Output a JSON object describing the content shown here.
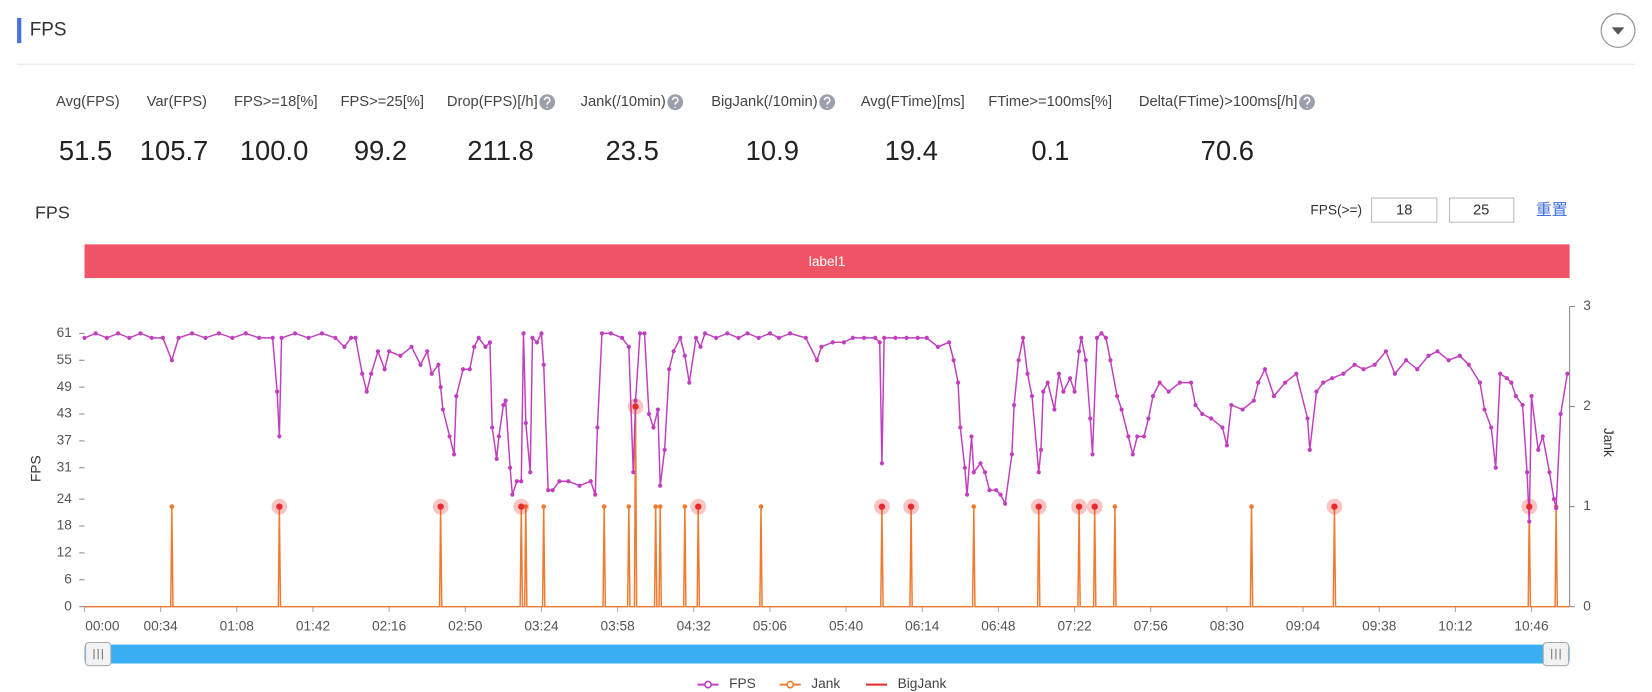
{
  "header": {
    "title": "FPS"
  },
  "stats": [
    {
      "label": "Avg(FPS)",
      "value": "51.5"
    },
    {
      "label": "Var(FPS)",
      "value": "105.7"
    },
    {
      "label": "FPS>=18[%]",
      "value": "100.0"
    },
    {
      "label": "FPS>=25[%]",
      "value": "99.2"
    },
    {
      "label": "Drop(FPS)[/h]",
      "value": "211.8",
      "help": true
    },
    {
      "label": "Jank(/10min)",
      "value": "23.5",
      "help": true
    },
    {
      "label": "BigJank(/10min)",
      "value": "10.9",
      "help": true
    },
    {
      "label": "Avg(FTime)[ms]",
      "value": "19.4"
    },
    {
      "label": "FTime>=100ms[%]",
      "value": "0.1"
    },
    {
      "label": "Delta(FTime)>100ms[/h]",
      "value": "70.6",
      "help": true
    }
  ],
  "controls": {
    "threshold_label": "FPS(>=)",
    "inputs": [
      "18",
      "25"
    ],
    "reset": "重置"
  },
  "chart_data": {
    "type": "line",
    "title": "FPS",
    "band": {
      "label": "label1",
      "color": "#ef5466"
    },
    "ylabel": "FPS",
    "y2label": "Jank",
    "xlim": [
      0,
      663
    ],
    "xticks": [
      {
        "value": 0,
        "label": "00:00"
      },
      {
        "value": 34,
        "label": "00:34"
      },
      {
        "value": 68,
        "label": "01:08"
      },
      {
        "value": 102,
        "label": "01:42"
      },
      {
        "value": 136,
        "label": "02:16"
      },
      {
        "value": 170,
        "label": "02:50"
      },
      {
        "value": 204,
        "label": "03:24"
      },
      {
        "value": 238,
        "label": "03:58"
      },
      {
        "value": 272,
        "label": "04:32"
      },
      {
        "value": 306,
        "label": "05:06"
      },
      {
        "value": 340,
        "label": "05:40"
      },
      {
        "value": 374,
        "label": "06:14"
      },
      {
        "value": 408,
        "label": "06:48"
      },
      {
        "value": 442,
        "label": "07:22"
      },
      {
        "value": 476,
        "label": "07:56"
      },
      {
        "value": 510,
        "label": "08:30"
      },
      {
        "value": 544,
        "label": "09:04"
      },
      {
        "value": 578,
        "label": "09:38"
      },
      {
        "value": 612,
        "label": "10:12"
      },
      {
        "value": 646,
        "label": "10:46"
      }
    ],
    "ylim": [
      0,
      67
    ],
    "yticks": [
      0,
      6,
      12,
      18,
      24,
      31,
      37,
      43,
      49,
      55,
      61
    ],
    "y2lim": [
      0,
      3
    ],
    "y2ticks": [
      0,
      1,
      2,
      3
    ],
    "series": [
      {
        "name": "FPS",
        "color": "#c13fbf",
        "marker": "dot",
        "line": true,
        "x": [
          0,
          5,
          10,
          15,
          20,
          25,
          30,
          35,
          39,
          42,
          48,
          54,
          60,
          66,
          72,
          78,
          84,
          86,
          87,
          88,
          94,
          100,
          106,
          112,
          116,
          119,
          121,
          124,
          126,
          128,
          131,
          134,
          136,
          141,
          146,
          150,
          153,
          155,
          158,
          159,
          160,
          163,
          165,
          166,
          169,
          172,
          174,
          176,
          179,
          181,
          182,
          184,
          185,
          187,
          188,
          190,
          191,
          193,
          195,
          196,
          197,
          199,
          200,
          202,
          204,
          205,
          207,
          209,
          212,
          216,
          221,
          226,
          228,
          229,
          231,
          235,
          240,
          243,
          245,
          246,
          248,
          250,
          252,
          254,
          256,
          257,
          259,
          261,
          263,
          266,
          268,
          270,
          273,
          275,
          277,
          282,
          287,
          292,
          296,
          301,
          306,
          310,
          315,
          322,
          327,
          329,
          334,
          339,
          343,
          348,
          353,
          355,
          356,
          357,
          362,
          367,
          372,
          376,
          381,
          386,
          388,
          390,
          391,
          393,
          394,
          396,
          397,
          400,
          402,
          404,
          407,
          409,
          411,
          414,
          415,
          417,
          419,
          421,
          423,
          426,
          427,
          428,
          430,
          433,
          435,
          437,
          440,
          442,
          444,
          445,
          447,
          449,
          450,
          452,
          454,
          456,
          458,
          461,
          463,
          466,
          468,
          470,
          473,
          475,
          477,
          480,
          484,
          489,
          494,
          496,
          499,
          503,
          508,
          510,
          512,
          517,
          522,
          524,
          527,
          531,
          536,
          541,
          546,
          547,
          550,
          553,
          557,
          562,
          567,
          571,
          576,
          581,
          585,
          590,
          595,
          600,
          604,
          609,
          614,
          618,
          623,
          625,
          628,
          630,
          632,
          635,
          637,
          639,
          642,
          644,
          645,
          646,
          649,
          651,
          654,
          656,
          657,
          659,
          662
        ],
        "values": [
          60,
          61,
          60,
          61,
          60,
          61,
          60,
          60,
          55,
          60,
          61,
          60,
          61,
          60,
          61,
          60,
          60,
          48,
          38,
          60,
          61,
          60,
          61,
          60,
          58,
          60,
          60,
          52,
          48,
          52,
          57,
          53,
          57,
          56,
          58,
          54,
          57,
          52,
          54,
          49,
          44,
          38,
          34,
          47,
          53,
          53,
          58,
          60,
          58,
          59,
          40,
          33,
          38,
          45,
          46,
          31,
          25,
          28,
          28,
          61,
          41,
          30,
          60,
          59,
          61,
          54,
          26,
          26,
          28,
          28,
          27,
          28,
          25,
          40,
          61,
          61,
          60,
          58,
          30,
          46,
          61,
          61,
          43,
          40,
          44,
          27,
          35,
          53,
          57,
          60,
          56,
          50,
          60,
          58,
          61,
          60,
          61,
          60,
          61,
          60,
          61,
          60,
          61,
          60,
          55,
          58,
          59,
          59,
          60,
          60,
          60,
          59,
          32,
          60,
          60,
          60,
          60,
          60,
          58,
          59,
          55,
          50,
          40,
          31,
          25,
          38,
          30,
          32,
          30,
          26,
          26,
          25,
          23,
          34,
          45,
          55,
          60,
          52,
          47,
          30,
          35,
          48,
          50,
          44,
          52,
          48,
          51,
          48,
          57,
          60,
          55,
          42,
          34,
          60,
          61,
          60,
          55,
          47,
          44,
          38,
          34,
          38,
          38,
          42,
          47,
          50,
          48,
          50,
          50,
          45,
          43,
          42,
          40,
          36,
          45,
          44,
          46,
          50,
          53,
          47,
          50,
          52,
          42,
          35,
          48,
          50,
          51,
          52,
          54,
          53,
          54,
          57,
          52,
          55,
          53,
          56,
          57,
          55,
          56,
          54,
          50,
          44,
          40,
          31,
          52,
          51,
          50,
          47,
          45,
          30,
          19,
          47,
          35,
          38,
          30,
          24,
          22,
          43,
          52
        ]
      },
      {
        "name": "Jank",
        "color": "#f07a30",
        "axis": "y2",
        "marker": "dot",
        "line": true,
        "x": [
          0,
          38.5,
          39,
          39.5,
          86.5,
          87,
          87.5,
          158.5,
          159,
          159.5,
          194.5,
          195,
          195.5,
          196.5,
          197,
          197.5,
          204.5,
          205,
          205.5,
          231.5,
          232,
          232.5,
          242.5,
          243,
          243.5,
          245.5,
          246,
          246.5,
          254.5,
          255,
          255.5,
          256.5,
          257,
          257.5,
          267.5,
          268,
          268.5,
          273.5,
          274,
          274.5,
          301.5,
          302,
          302.5,
          355.5,
          356,
          356.5,
          368.5,
          369,
          369.5,
          396.5,
          397,
          397.5,
          425.5,
          426,
          426.5,
          443.5,
          444,
          444.5,
          450.5,
          451,
          451.5,
          459.5,
          460,
          460.5,
          520.5,
          521,
          521.5,
          557.5,
          558,
          558.5,
          644.5,
          645,
          645.5,
          656.5,
          657,
          657.5,
          663
        ],
        "values": [
          0,
          0,
          1,
          0,
          0,
          1,
          0,
          0,
          1,
          0,
          0,
          1,
          0,
          0,
          1,
          0,
          0,
          1,
          0,
          0,
          1,
          0,
          0,
          1,
          0,
          0,
          2,
          0,
          0,
          1,
          0,
          0,
          1,
          0,
          0,
          1,
          0,
          0,
          1,
          0,
          0,
          1,
          0,
          0,
          1,
          0,
          0,
          1,
          0,
          0,
          1,
          0,
          0,
          1,
          0,
          0,
          1,
          0,
          0,
          1,
          0,
          0,
          1,
          0,
          0,
          1,
          0,
          0,
          1,
          0,
          0,
          1,
          0,
          0,
          1,
          0,
          0
        ]
      },
      {
        "name": "BigJank",
        "color": "#e52b2b",
        "axis": "y2",
        "marker": "halo",
        "line": false,
        "x": [
          87,
          159,
          195,
          246,
          274,
          356,
          369,
          426,
          444,
          451,
          558,
          645
        ],
        "values": [
          1,
          1,
          1,
          2,
          1,
          1,
          1,
          1,
          1,
          1,
          1,
          1
        ]
      }
    ]
  }
}
